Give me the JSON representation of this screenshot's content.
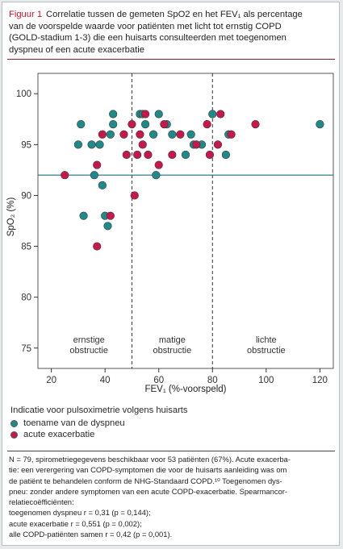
{
  "figure": {
    "label": "Figuur 1",
    "title_lines": [
      "Correlatie tussen de gemeten SpO2 en het FEV₁ als percentage",
      "van de voorspelde waarde voor patiënten met licht tot ernstig COPD",
      "(GOLD-stadium 1-3) die een huisarts consulteerden met toegenomen",
      "dyspneu of een acute exacerbatie"
    ]
  },
  "legend": {
    "title": "Indicatie voor pulsoximetrie volgens huisarts",
    "items": [
      {
        "label": "toename van de dyspneu",
        "color": "#1f8a8a"
      },
      {
        "label": "acute exacerbatie",
        "color": "#c8174a"
      }
    ]
  },
  "notes": [
    "N = 79, spirometriegegevens beschikbaar voor 53 patiënten (67%). Acute exacerba-",
    "tie: een verergering van COPD-symptomen die voor de huisarts aanleiding was om",
    "de patiënt te behandelen conform de NHG-Standaard COPD.¹⁰ Toegenomen dys-",
    "pneu: zonder andere symptomen van een acute COPD-exacerbatie. Spearmancor-",
    "relatiecoëfficiënten:",
    "toegenomen dyspneu r = 0,31 (p = 0,144);",
    "acute exacerbatie r = 0,551 (p = 0,002);",
    "alle COPD-patiënten samen r = 0,42 (p = 0,001)."
  ],
  "chart_data": {
    "type": "scatter",
    "xlabel": "FEV₁ (%-voorspeld)",
    "ylabel": "SpO₂ (%)",
    "xlim": [
      15,
      125
    ],
    "ylim": [
      73,
      102
    ],
    "xticks": [
      20,
      40,
      60,
      80,
      100,
      120
    ],
    "yticks": [
      75,
      80,
      85,
      90,
      95,
      100
    ],
    "reference_lines": {
      "vertical": [
        50,
        80
      ],
      "horizontal": 92
    },
    "regions": [
      {
        "lines": [
          "ernstige",
          "obstructie"
        ],
        "x": 34
      },
      {
        "lines": [
          "matige",
          "obstructie"
        ],
        "x": 65
      },
      {
        "lines": [
          "lichte",
          "obstructie"
        ],
        "x": 100
      }
    ],
    "series": [
      {
        "name": "toename van de dyspneu",
        "color": "#1f8a8a",
        "points": [
          [
            30,
            95
          ],
          [
            31,
            97
          ],
          [
            32,
            88
          ],
          [
            35,
            95
          ],
          [
            36,
            92
          ],
          [
            38,
            95
          ],
          [
            39,
            91
          ],
          [
            40,
            88
          ],
          [
            41,
            87
          ],
          [
            42,
            96
          ],
          [
            43,
            97
          ],
          [
            43,
            98
          ],
          [
            53,
            98
          ],
          [
            54,
            98
          ],
          [
            55,
            97
          ],
          [
            58,
            96
          ],
          [
            60,
            98
          ],
          [
            59,
            92
          ],
          [
            63,
            97
          ],
          [
            65,
            96
          ],
          [
            70,
            94
          ],
          [
            72,
            96
          ],
          [
            73,
            95
          ],
          [
            76,
            95
          ],
          [
            80,
            98
          ],
          [
            85,
            94
          ],
          [
            86,
            96
          ],
          [
            120,
            97
          ]
        ]
      },
      {
        "name": "acute exacerbatie",
        "color": "#c8174a",
        "points": [
          [
            25,
            92
          ],
          [
            37,
            85
          ],
          [
            37,
            93
          ],
          [
            39,
            96
          ],
          [
            42,
            88
          ],
          [
            47,
            96
          ],
          [
            48,
            94
          ],
          [
            50,
            97
          ],
          [
            51,
            90
          ],
          [
            52,
            94
          ],
          [
            53,
            96
          ],
          [
            54,
            95
          ],
          [
            55,
            98
          ],
          [
            56,
            94
          ],
          [
            60,
            93
          ],
          [
            62,
            97
          ],
          [
            65,
            94
          ],
          [
            68,
            96
          ],
          [
            74,
            95
          ],
          [
            78,
            97
          ],
          [
            79,
            94
          ],
          [
            82,
            95
          ],
          [
            83,
            98
          ],
          [
            87,
            96
          ],
          [
            96,
            97
          ]
        ]
      }
    ]
  }
}
